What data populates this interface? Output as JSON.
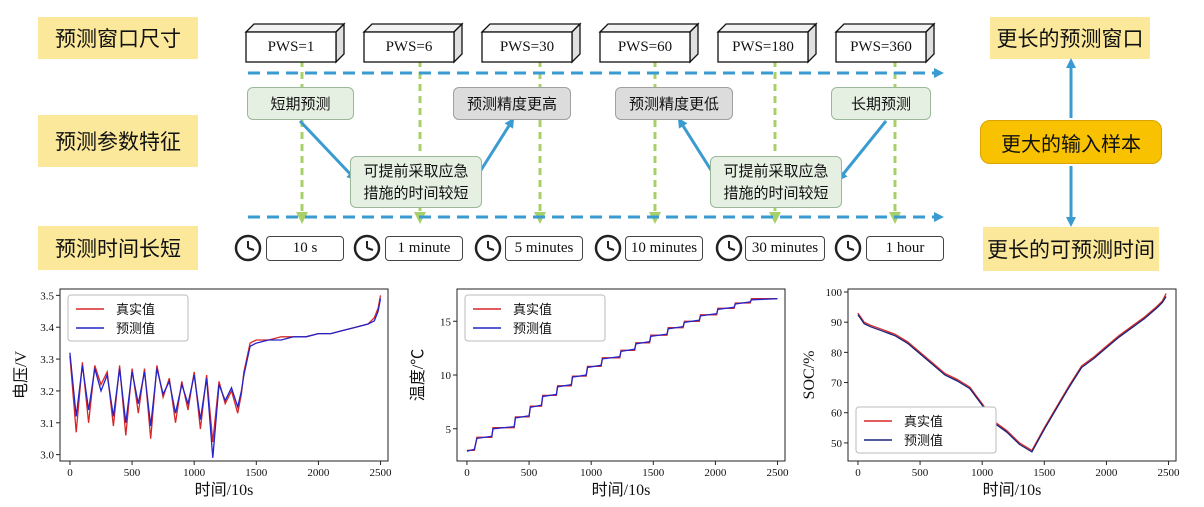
{
  "diagram": {
    "rows": {
      "window_size": "预测窗口尺寸",
      "param_features": "预测参数特征",
      "time_length": "预测时间长短"
    },
    "windows": [
      "PWS=1",
      "PWS=6",
      "PWS=30",
      "PWS=60",
      "PWS=180",
      "PWS=360"
    ],
    "features": {
      "short_term": "短期预测",
      "higher_precision": "预测精度更高",
      "lower_precision": "预测精度更低",
      "long_term": "长期预测",
      "less_time_left": "可提前采取应急\n措施的时间较短",
      "less_time_right": "可提前采取应急\n措施的时间较短"
    },
    "times": [
      "10 s",
      "1 minute",
      "5 minutes",
      "10 minutes",
      "30 minutes",
      "1 hour"
    ],
    "right": {
      "longer_window": "更长的预测窗口",
      "bigger_input": "更大的输入样本",
      "longer_time": "更长的可预测时间"
    },
    "icons": [
      "cube-icon",
      "clock-icon",
      "arrow-icon"
    ],
    "colors": {
      "yellow_box": "#fbe89a",
      "orange_box": "#f9c200",
      "blue_arrow": "#3a9bd0",
      "green_arrow": "#a8d06a"
    }
  },
  "chart_data": [
    {
      "type": "line",
      "xlabel": "时间/10s",
      "ylabel": "电压/V",
      "xlim": [
        -80,
        2560
      ],
      "ylim": [
        2.98,
        3.52
      ],
      "xticks": [
        0,
        500,
        1000,
        1500,
        2000,
        2500
      ],
      "yticks": [
        3.0,
        3.1,
        3.2,
        3.3,
        3.4,
        3.5
      ],
      "legend": "top-left",
      "series": [
        {
          "name": "真实值",
          "color": "#d62728",
          "x": [
            0,
            50,
            100,
            150,
            200,
            250,
            300,
            350,
            400,
            450,
            500,
            550,
            600,
            650,
            700,
            750,
            800,
            850,
            900,
            950,
            1000,
            1050,
            1100,
            1150,
            1200,
            1250,
            1300,
            1350,
            1380,
            1400,
            1450,
            1500,
            1600,
            1700,
            1800,
            1900,
            2000,
            2100,
            2200,
            2300,
            2400,
            2450,
            2480,
            2500
          ],
          "values": [
            3.31,
            3.07,
            3.29,
            3.1,
            3.28,
            3.22,
            3.26,
            3.09,
            3.28,
            3.06,
            3.27,
            3.13,
            3.27,
            3.05,
            3.28,
            3.18,
            3.24,
            3.1,
            3.23,
            3.14,
            3.26,
            3.08,
            3.25,
            3.04,
            3.23,
            3.16,
            3.2,
            3.13,
            3.19,
            3.26,
            3.35,
            3.36,
            3.36,
            3.37,
            3.37,
            3.37,
            3.38,
            3.38,
            3.39,
            3.4,
            3.41,
            3.43,
            3.46,
            3.5
          ]
        },
        {
          "name": "预测值",
          "color": "#2424c8",
          "x": [
            0,
            50,
            100,
            150,
            200,
            250,
            300,
            350,
            400,
            450,
            500,
            550,
            600,
            650,
            700,
            750,
            800,
            850,
            900,
            950,
            1000,
            1050,
            1100,
            1150,
            1200,
            1250,
            1300,
            1350,
            1380,
            1400,
            1450,
            1500,
            1600,
            1700,
            1800,
            1900,
            2000,
            2100,
            2200,
            2300,
            2400,
            2450,
            2480,
            2500
          ],
          "values": [
            3.32,
            3.12,
            3.28,
            3.14,
            3.27,
            3.2,
            3.25,
            3.12,
            3.27,
            3.1,
            3.26,
            3.16,
            3.26,
            3.09,
            3.27,
            3.19,
            3.23,
            3.13,
            3.22,
            3.16,
            3.25,
            3.11,
            3.24,
            2.99,
            3.22,
            3.17,
            3.21,
            3.15,
            3.2,
            3.25,
            3.34,
            3.35,
            3.36,
            3.36,
            3.37,
            3.37,
            3.38,
            3.38,
            3.39,
            3.4,
            3.41,
            3.42,
            3.45,
            3.49
          ]
        }
      ]
    },
    {
      "type": "line",
      "xlabel": "时间/10s",
      "ylabel": "温度/℃",
      "xlim": [
        -80,
        2560
      ],
      "ylim": [
        2,
        18
      ],
      "xticks": [
        0,
        500,
        1000,
        1500,
        2000,
        2500
      ],
      "yticks": [
        5,
        10,
        15
      ],
      "legend": "top-left",
      "series": [
        {
          "name": "真实值",
          "color": "#d62728",
          "x": [
            0,
            60,
            80,
            200,
            210,
            380,
            390,
            500,
            510,
            600,
            610,
            720,
            730,
            840,
            850,
            960,
            970,
            1080,
            1090,
            1230,
            1240,
            1350,
            1360,
            1470,
            1480,
            1610,
            1620,
            1740,
            1750,
            1870,
            1880,
            2010,
            2020,
            2150,
            2160,
            2280,
            2290,
            2500
          ],
          "values": [
            3,
            3,
            4.2,
            4.2,
            5.1,
            5.1,
            6.1,
            6.1,
            7.1,
            7.1,
            8.1,
            8.1,
            9,
            9,
            9.9,
            9.9,
            10.8,
            10.8,
            11.6,
            11.6,
            12.3,
            12.3,
            13,
            13,
            13.7,
            13.7,
            14.4,
            14.4,
            15,
            15,
            15.6,
            15.6,
            16.2,
            16.2,
            16.7,
            16.7,
            17.1,
            17.1
          ]
        },
        {
          "name": "预测值",
          "color": "#2424c8",
          "x": [
            0,
            60,
            80,
            200,
            210,
            380,
            390,
            500,
            510,
            600,
            610,
            720,
            730,
            840,
            850,
            960,
            970,
            1080,
            1090,
            1230,
            1240,
            1350,
            1360,
            1470,
            1480,
            1610,
            1620,
            1740,
            1750,
            1870,
            1880,
            2010,
            2020,
            2150,
            2160,
            2280,
            2290,
            2500
          ],
          "values": [
            2.9,
            3.1,
            4.1,
            4.3,
            5,
            5.2,
            6,
            6.2,
            7,
            7.2,
            8,
            8.2,
            8.9,
            9.1,
            9.8,
            10,
            10.7,
            10.9,
            11.5,
            11.7,
            12.2,
            12.4,
            12.9,
            13.1,
            13.6,
            13.8,
            14.3,
            14.5,
            14.9,
            15.1,
            15.5,
            15.7,
            16.1,
            16.3,
            16.6,
            16.8,
            17,
            17.1
          ]
        }
      ]
    },
    {
      "type": "line",
      "xlabel": "时间/10s",
      "ylabel": "SOC/%",
      "xlim": [
        -80,
        2560
      ],
      "ylim": [
        44,
        101
      ],
      "xticks": [
        0,
        500,
        1000,
        1500,
        2000,
        2500
      ],
      "yticks": [
        50,
        60,
        70,
        80,
        90,
        100
      ],
      "legend": "bottom-left",
      "series": [
        {
          "name": "真实值",
          "color": "#d62728",
          "x": [
            0,
            50,
            100,
            200,
            300,
            400,
            500,
            600,
            700,
            800,
            900,
            1000,
            1100,
            1200,
            1300,
            1400,
            1500,
            1600,
            1700,
            1800,
            1900,
            2000,
            2100,
            2200,
            2300,
            2400,
            2450,
            2480
          ],
          "values": [
            93,
            90,
            89,
            87.5,
            86,
            83.5,
            80,
            76.5,
            73,
            71,
            68.5,
            63,
            57,
            54,
            50,
            47.5,
            55,
            62,
            69,
            75.5,
            78.5,
            82,
            85.5,
            88.5,
            91.5,
            95,
            97,
            99.5
          ]
        },
        {
          "name": "预测值",
          "color": "#1a237e",
          "x": [
            0,
            50,
            100,
            200,
            300,
            400,
            500,
            600,
            700,
            800,
            900,
            1000,
            1100,
            1200,
            1300,
            1400,
            1500,
            1600,
            1700,
            1800,
            1900,
            2000,
            2100,
            2200,
            2300,
            2400,
            2450,
            2480
          ],
          "values": [
            92.5,
            89.5,
            88.5,
            87,
            85.5,
            83,
            79.5,
            76,
            72.5,
            70.5,
            68,
            62.5,
            56.5,
            53.5,
            49.5,
            47,
            54.5,
            61.5,
            68.5,
            75,
            78,
            81.5,
            85,
            88,
            91,
            94.5,
            96.5,
            98.5
          ]
        }
      ]
    }
  ]
}
